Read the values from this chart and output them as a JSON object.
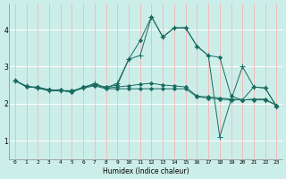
{
  "xlabel": "Humidex (Indice chaleur)",
  "bg_color": "#cceee8",
  "grid_color_h": "#ffffff",
  "grid_color_v": "#ffaaaa",
  "line_color": "#1a6b60",
  "xlim": [
    -0.5,
    23.5
  ],
  "ylim": [
    0.5,
    4.7
  ],
  "yticks": [
    1,
    2,
    3,
    4
  ],
  "xticks": [
    0,
    1,
    2,
    3,
    4,
    5,
    6,
    7,
    8,
    9,
    10,
    11,
    12,
    13,
    14,
    15,
    16,
    17,
    18,
    19,
    20,
    21,
    22,
    23
  ],
  "series": [
    [
      2.62,
      2.45,
      2.45,
      2.37,
      2.37,
      2.3,
      2.45,
      2.5,
      2.45,
      2.5,
      3.2,
      3.7,
      4.35,
      3.8,
      4.05,
      4.05,
      3.55,
      3.3,
      3.25,
      2.2,
      2.1,
      2.45,
      2.42,
      1.92
    ],
    [
      2.62,
      2.47,
      2.42,
      2.35,
      2.35,
      2.35,
      2.42,
      2.48,
      2.4,
      2.4,
      2.4,
      2.4,
      2.4,
      2.4,
      2.4,
      2.4,
      2.18,
      2.15,
      2.12,
      2.1,
      2.1,
      2.1,
      2.1,
      1.95
    ],
    [
      2.62,
      2.47,
      2.42,
      2.37,
      2.35,
      2.32,
      2.45,
      2.52,
      2.42,
      2.45,
      2.48,
      2.52,
      2.55,
      2.5,
      2.48,
      2.45,
      2.2,
      2.18,
      2.15,
      2.12,
      2.1,
      2.12,
      2.12,
      1.95
    ],
    [
      2.62,
      2.47,
      2.42,
      2.35,
      2.35,
      2.32,
      2.42,
      2.55,
      2.42,
      2.55,
      3.2,
      3.3,
      4.35,
      3.8,
      4.05,
      4.05,
      3.55,
      3.3,
      1.1,
      2.1,
      3.0,
      2.45,
      2.42,
      1.92
    ]
  ],
  "lw": 0.7,
  "marker_size": 2.0
}
